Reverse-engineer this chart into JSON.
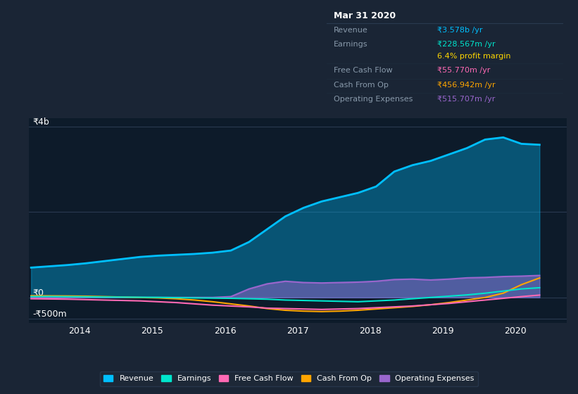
{
  "bg_color": "#0d1b2a",
  "fig_bg_color": "#1a2535",
  "grid_color": "#2a3a50",
  "ylim": [
    -600000000,
    4200000000
  ],
  "xlim": [
    2013.3,
    2020.7
  ],
  "xticks": [
    2014,
    2015,
    2016,
    2017,
    2018,
    2019,
    2020
  ],
  "legend_items": [
    "Revenue",
    "Earnings",
    "Free Cash Flow",
    "Cash From Op",
    "Operating Expenses"
  ],
  "legend_colors": [
    "#00bfff",
    "#00e5cc",
    "#ff69b4",
    "#ffa500",
    "#9966cc"
  ],
  "info_box": {
    "title": "Mar 31 2020",
    "rows": [
      {
        "label": "Revenue",
        "value": "₹3.578b /yr",
        "value_color": "#00bfff"
      },
      {
        "label": "Earnings",
        "value": "₹228.567m /yr",
        "value_color": "#00e5cc"
      },
      {
        "label": "",
        "value": "6.4% profit margin",
        "value_color": "#ffd700"
      },
      {
        "label": "Free Cash Flow",
        "value": "₹55.770m /yr",
        "value_color": "#ff69b4"
      },
      {
        "label": "Cash From Op",
        "value": "₹456.942m /yr",
        "value_color": "#ffa500"
      },
      {
        "label": "Operating Expenses",
        "value": "₹515.707m /yr",
        "value_color": "#9966cc"
      }
    ]
  },
  "series": {
    "revenue": {
      "color": "#00bfff",
      "fill_alpha": 0.35,
      "x": [
        2013.33,
        2013.58,
        2013.83,
        2014.08,
        2014.33,
        2014.58,
        2014.83,
        2015.08,
        2015.33,
        2015.58,
        2015.83,
        2016.08,
        2016.33,
        2016.58,
        2016.83,
        2017.08,
        2017.33,
        2017.58,
        2017.83,
        2018.08,
        2018.33,
        2018.58,
        2018.83,
        2019.08,
        2019.33,
        2019.58,
        2019.83,
        2020.08,
        2020.33
      ],
      "y": [
        700000000,
        730000000,
        760000000,
        800000000,
        850000000,
        900000000,
        950000000,
        980000000,
        1000000000,
        1020000000,
        1050000000,
        1100000000,
        1300000000,
        1600000000,
        1900000000,
        2100000000,
        2250000000,
        2350000000,
        2450000000,
        2600000000,
        2950000000,
        3100000000,
        3200000000,
        3350000000,
        3500000000,
        3700000000,
        3750000000,
        3600000000,
        3578000000
      ]
    },
    "earnings": {
      "color": "#00e5cc",
      "x": [
        2013.33,
        2013.58,
        2013.83,
        2014.08,
        2014.33,
        2014.58,
        2014.83,
        2015.08,
        2015.33,
        2015.58,
        2015.83,
        2016.08,
        2016.33,
        2016.58,
        2016.83,
        2017.08,
        2017.33,
        2017.58,
        2017.83,
        2018.08,
        2018.33,
        2018.58,
        2018.83,
        2019.08,
        2019.33,
        2019.58,
        2019.83,
        2020.08,
        2020.33
      ],
      "y": [
        20000000,
        22000000,
        18000000,
        15000000,
        10000000,
        8000000,
        5000000,
        2000000,
        -5000000,
        -10000000,
        -15000000,
        -20000000,
        -30000000,
        -40000000,
        -60000000,
        -70000000,
        -80000000,
        -90000000,
        -100000000,
        -80000000,
        -60000000,
        -30000000,
        0,
        30000000,
        60000000,
        100000000,
        150000000,
        200000000,
        228567000
      ]
    },
    "free_cash_flow": {
      "color": "#ff69b4",
      "x": [
        2013.33,
        2013.58,
        2013.83,
        2014.08,
        2014.33,
        2014.58,
        2014.83,
        2015.08,
        2015.33,
        2015.58,
        2015.83,
        2016.08,
        2016.33,
        2016.58,
        2016.83,
        2017.08,
        2017.33,
        2017.58,
        2017.83,
        2018.08,
        2018.33,
        2018.58,
        2018.83,
        2019.08,
        2019.33,
        2019.58,
        2019.83,
        2020.08,
        2020.33
      ],
      "y": [
        -30000000,
        -35000000,
        -40000000,
        -50000000,
        -60000000,
        -70000000,
        -80000000,
        -100000000,
        -120000000,
        -150000000,
        -180000000,
        -200000000,
        -220000000,
        -250000000,
        -260000000,
        -270000000,
        -280000000,
        -270000000,
        -260000000,
        -240000000,
        -220000000,
        -200000000,
        -170000000,
        -140000000,
        -100000000,
        -60000000,
        -20000000,
        20000000,
        55770000
      ]
    },
    "cash_from_op": {
      "color": "#ffa500",
      "x": [
        2013.33,
        2013.58,
        2013.83,
        2014.08,
        2014.33,
        2014.58,
        2014.83,
        2015.08,
        2015.33,
        2015.58,
        2015.83,
        2016.08,
        2016.33,
        2016.58,
        2016.83,
        2017.08,
        2017.33,
        2017.58,
        2017.83,
        2018.08,
        2018.33,
        2018.58,
        2018.83,
        2019.08,
        2019.33,
        2019.58,
        2019.83,
        2020.08,
        2020.33
      ],
      "y": [
        40000000,
        38000000,
        35000000,
        30000000,
        20000000,
        10000000,
        0,
        -10000000,
        -30000000,
        -60000000,
        -100000000,
        -150000000,
        -200000000,
        -260000000,
        -300000000,
        -320000000,
        -330000000,
        -320000000,
        -300000000,
        -270000000,
        -240000000,
        -210000000,
        -170000000,
        -120000000,
        -60000000,
        0,
        100000000,
        300000000,
        456942000
      ]
    },
    "operating_expenses": {
      "color": "#9966cc",
      "fill_alpha": 0.5,
      "x": [
        2013.33,
        2013.58,
        2013.83,
        2014.08,
        2014.33,
        2014.58,
        2014.83,
        2015.08,
        2015.33,
        2015.58,
        2015.83,
        2016.08,
        2016.33,
        2016.58,
        2016.83,
        2017.08,
        2017.33,
        2017.58,
        2017.83,
        2018.08,
        2018.33,
        2018.58,
        2018.83,
        2019.08,
        2019.33,
        2019.58,
        2019.83,
        2020.08,
        2020.33
      ],
      "y": [
        0,
        0,
        0,
        0,
        0,
        0,
        0,
        0,
        0,
        0,
        0,
        20000000,
        200000000,
        320000000,
        380000000,
        350000000,
        340000000,
        350000000,
        360000000,
        380000000,
        420000000,
        430000000,
        410000000,
        430000000,
        460000000,
        470000000,
        490000000,
        500000000,
        515707000
      ]
    }
  }
}
